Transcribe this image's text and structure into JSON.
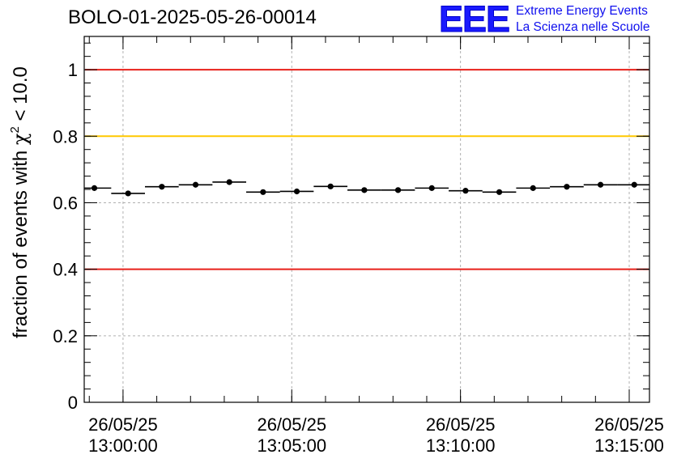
{
  "colors": {
    "red": "#e8201a",
    "yellow": "#ffc800",
    "grid": "#b0b0b0",
    "point": "#000000"
  },
  "header": {
    "title": "BOLO-01-2025-05-26-00014"
  },
  "logo": {
    "mark": "EEE",
    "line1": "Extreme Energy Events",
    "line2": "La Scienza nelle Scuole"
  },
  "chart_data": {
    "type": "scatter",
    "title": "BOLO-01-2025-05-26-00014",
    "xlabel": "",
    "ylabel_parts": [
      "fraction of events with ",
      "χ",
      "2",
      " < 10.0"
    ],
    "xlim_minutes": [
      -1.15,
      15.6
    ],
    "ylim": [
      0,
      1.1
    ],
    "yticks": [
      0,
      0.2,
      0.4,
      0.6,
      0.8,
      1
    ],
    "ytick_labels": [
      "0",
      "0.2",
      "0.4",
      "0.6",
      "0.8",
      "1"
    ],
    "xticks_minutes": [
      0,
      5,
      10,
      15
    ],
    "xtick_labels": [
      {
        "date": "26/05/25",
        "time": "13:00:00"
      },
      {
        "date": "26/05/25",
        "time": "13:05:00"
      },
      {
        "date": "26/05/25",
        "time": "13:10:00"
      },
      {
        "date": "26/05/25",
        "time": "13:15:00"
      }
    ],
    "grid": true,
    "reference_lines": [
      {
        "y": 1.0,
        "color": "red"
      },
      {
        "y": 0.8,
        "color": "yellow"
      },
      {
        "y": 0.4,
        "color": "red"
      }
    ],
    "bin_width_minutes": 1,
    "series": [
      {
        "name": "fraction",
        "x_minutes": [
          -0.85,
          0.15,
          1.15,
          2.15,
          3.15,
          4.15,
          5.15,
          6.15,
          7.15,
          8.15,
          9.15,
          10.15,
          11.15,
          12.15,
          13.15,
          14.15,
          15.15
        ],
        "y": [
          0.644,
          0.628,
          0.648,
          0.654,
          0.662,
          0.632,
          0.634,
          0.649,
          0.638,
          0.638,
          0.644,
          0.636,
          0.632,
          0.644,
          0.648,
          0.654,
          0.654
        ]
      }
    ]
  }
}
